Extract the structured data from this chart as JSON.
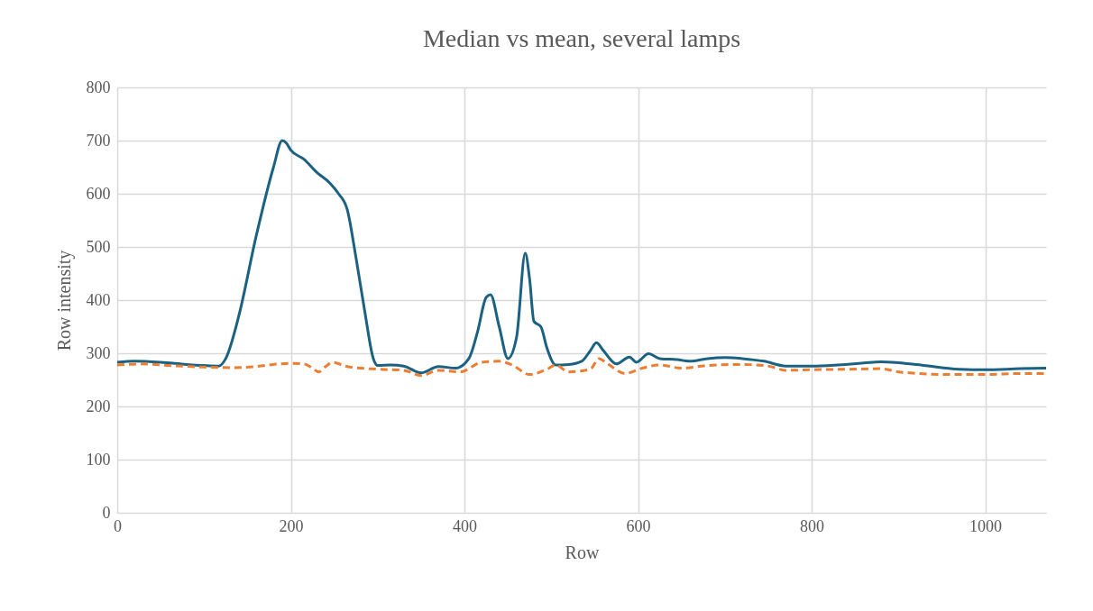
{
  "chart_data": {
    "type": "line",
    "title": "Median vs mean, several lamps",
    "xlabel": "Row",
    "ylabel": "Row intensity",
    "xlim": [
      0,
      1070
    ],
    "xticks": [
      0,
      200,
      400,
      600,
      800,
      1000
    ],
    "ylim": [
      0,
      800
    ],
    "yticks": [
      0,
      100,
      200,
      300,
      400,
      500,
      600,
      700,
      800
    ],
    "grid": true,
    "series": [
      {
        "color": "#1b6182",
        "line_style": "solid",
        "x": [
          0,
          20,
          50,
          80,
          100,
          117,
          125,
          140,
          160,
          180,
          190,
          195,
          200,
          215,
          230,
          245,
          255,
          265,
          275,
          285,
          295,
          300,
          315,
          330,
          350,
          370,
          390,
          405,
          415,
          425,
          430,
          440,
          450,
          460,
          470,
          475,
          480,
          488,
          495,
          505,
          520,
          535,
          545,
          552,
          560,
          575,
          590,
          598,
          612,
          625,
          645,
          660,
          680,
          700,
          720,
          745,
          770,
          800,
          830,
          870,
          880,
          920,
          970,
          1000,
          1040,
          1070
        ],
        "values": [
          283,
          285,
          283,
          279,
          277,
          276,
          290,
          370,
          520,
          650,
          700,
          695,
          682,
          665,
          640,
          620,
          600,
          570,
          480,
          380,
          290,
          277,
          278,
          276,
          263,
          275,
          272,
          290,
          340,
          405,
          410,
          350,
          290,
          330,
          488,
          440,
          360,
          350,
          310,
          278,
          279,
          285,
          305,
          320,
          305,
          280,
          293,
          283,
          299,
          290,
          288,
          285,
          290,
          292,
          290,
          285,
          276,
          276,
          278,
          283,
          284,
          279,
          270,
          269,
          271,
          272
        ]
      },
      {
        "color": "#ed7d31",
        "line_style": "dashed",
        "x": [
          0,
          30,
          60,
          100,
          130,
          160,
          180,
          200,
          215,
          225,
          232,
          240,
          248,
          265,
          300,
          330,
          350,
          370,
          395,
          420,
          440,
          455,
          475,
          495,
          505,
          520,
          545,
          555,
          565,
          585,
          605,
          625,
          650,
          680,
          720,
          750,
          770,
          800,
          840,
          880,
          900,
          960,
          1000,
          1040,
          1070
        ],
        "values": [
          278,
          280,
          277,
          274,
          273,
          275,
          279,
          281,
          280,
          272,
          265,
          275,
          283,
          275,
          270,
          268,
          258,
          268,
          265,
          283,
          285,
          278,
          260,
          270,
          278,
          265,
          270,
          290,
          280,
          262,
          272,
          278,
          272,
          277,
          279,
          276,
          268,
          269,
          270,
          271,
          265,
          260,
          260,
          262,
          262
        ]
      }
    ]
  }
}
